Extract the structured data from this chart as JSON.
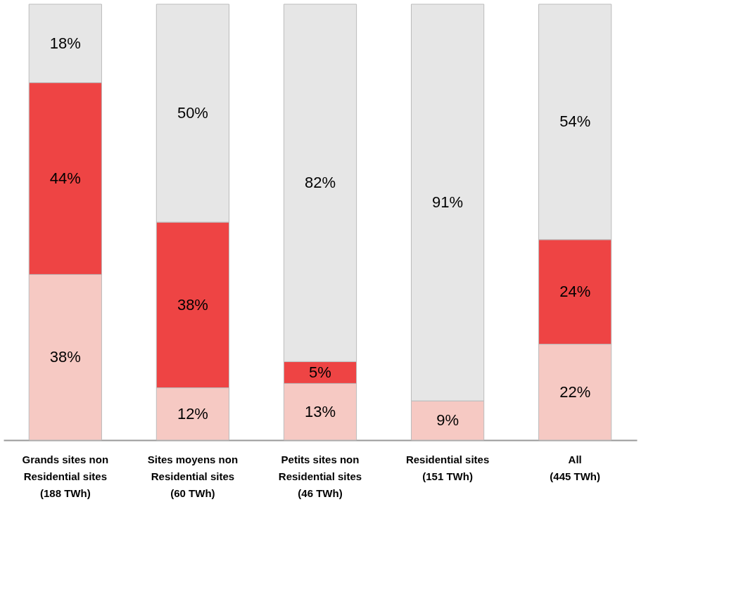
{
  "chart_data": {
    "type": "bar",
    "stacked": true,
    "categories": [
      "Grands sites non\nResidential sites\n(188 TWh)",
      "Sites moyens non\nResidential sites\n(60 TWh)",
      "Petits sites non\nResidential sites\n(46 TWh)",
      "Residential sites\n(151 TWh)",
      "All\n(445 TWh)"
    ],
    "series": [
      {
        "color": "#f6c9c3",
        "values": [
          38,
          12,
          13,
          9,
          22
        ],
        "value_labels": [
          "38%",
          "12%",
          "13%",
          "9%",
          "22%"
        ]
      },
      {
        "color": "#ee4444",
        "values": [
          44,
          38,
          5,
          0,
          24
        ],
        "value_labels": [
          "44%",
          "38%",
          "5%",
          null,
          "24%"
        ]
      },
      {
        "color": "#e6e6e6",
        "values": [
          18,
          50,
          82,
          91,
          54
        ],
        "value_labels": [
          "18%",
          "50%",
          "82%",
          "91%",
          "54%"
        ]
      }
    ],
    "tick_labels": "x"
  }
}
